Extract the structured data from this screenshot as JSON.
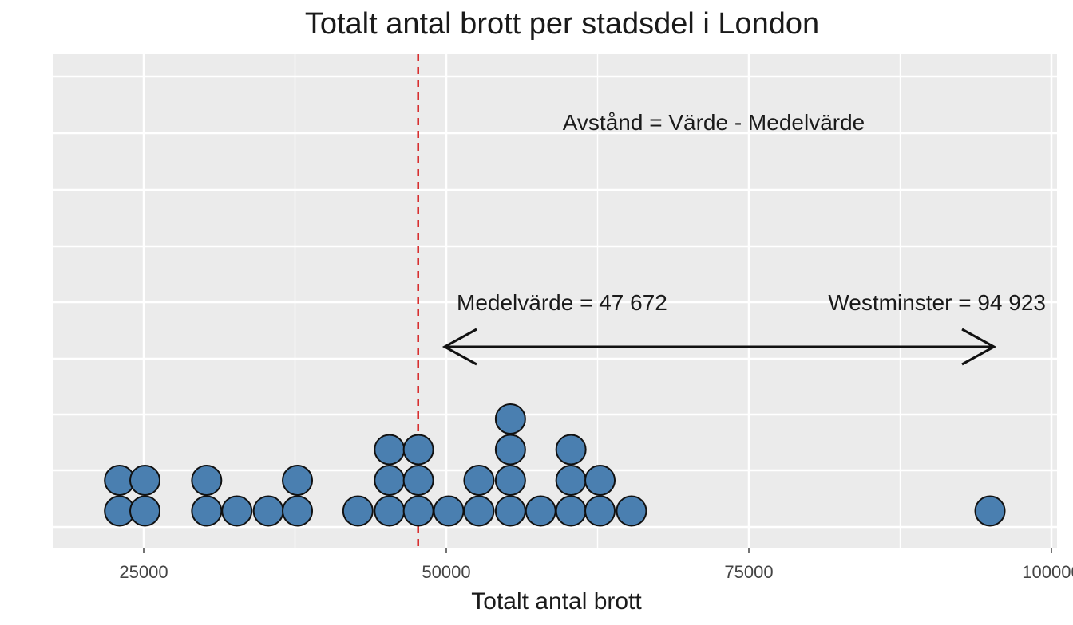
{
  "chart_data": {
    "type": "dotplot",
    "title": "Totalt antal brott per stadsdel i London",
    "xlabel": "Totalt antal brott",
    "ylabel": "",
    "xlim": [
      17500,
      100000
    ],
    "x_ticks": [
      25000,
      50000,
      75000,
      100000
    ],
    "x_tick_labels": [
      "25000",
      "50000",
      "75000",
      "100000"
    ],
    "grid": true,
    "dot_color": "#4a7fb0",
    "mean": 47672,
    "mean_line_color": "#d62728",
    "stacks": [
      {
        "x": 23000,
        "count": 2
      },
      {
        "x": 25100,
        "count": 2
      },
      {
        "x": 30200,
        "count": 2
      },
      {
        "x": 32700,
        "count": 1
      },
      {
        "x": 35300,
        "count": 1
      },
      {
        "x": 37700,
        "count": 2
      },
      {
        "x": 42700,
        "count": 1
      },
      {
        "x": 45300,
        "count": 3
      },
      {
        "x": 47700,
        "count": 3
      },
      {
        "x": 50200,
        "count": 1
      },
      {
        "x": 52700,
        "count": 2
      },
      {
        "x": 55300,
        "count": 4
      },
      {
        "x": 57800,
        "count": 1
      },
      {
        "x": 60300,
        "count": 3
      },
      {
        "x": 62700,
        "count": 2
      },
      {
        "x": 65300,
        "count": 1
      },
      {
        "x": 94923,
        "count": 1
      }
    ],
    "annotations": {
      "formula": "Avstånd = Värde - Medelvärde",
      "mean_label": "Medelvärde = 47 672",
      "westminster_label": "Westminster = 94 923",
      "westminster_value": 94923
    }
  }
}
